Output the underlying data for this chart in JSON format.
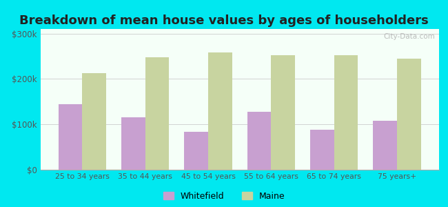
{
  "title": "Breakdown of mean house values by ages of householders",
  "categories": [
    "25 to 34 years",
    "35 to 44 years",
    "45 to 54 years",
    "55 to 64 years",
    "65 to 74 years",
    "75 years+"
  ],
  "whitefield_values": [
    145000,
    115000,
    83000,
    128000,
    88000,
    108000
  ],
  "maine_values": [
    213000,
    248000,
    258000,
    252000,
    253000,
    245000
  ],
  "whitefield_color": "#c8a0d0",
  "maine_color": "#c8d4a0",
  "background_outer": "#00e8f0",
  "background_inner_top": "#f5fff5",
  "background_inner_bottom": "#e8f5e0",
  "ylim": [
    0,
    310000
  ],
  "yticks": [
    0,
    100000,
    200000,
    300000
  ],
  "ytick_labels": [
    "$0",
    "$100k",
    "$200k",
    "$300k"
  ],
  "title_fontsize": 13,
  "legend_labels": [
    "Whitefield",
    "Maine"
  ],
  "bar_width": 0.38,
  "watermark": "City-Data.com"
}
